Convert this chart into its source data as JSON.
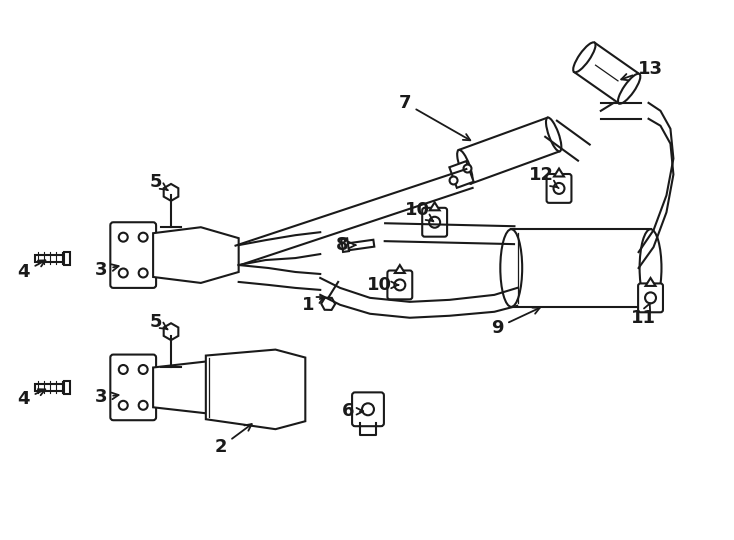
{
  "bg_color": "#ffffff",
  "line_color": "#1a1a1a",
  "lw": 1.5,
  "fig_width": 7.34,
  "fig_height": 5.4,
  "dpi": 100
}
